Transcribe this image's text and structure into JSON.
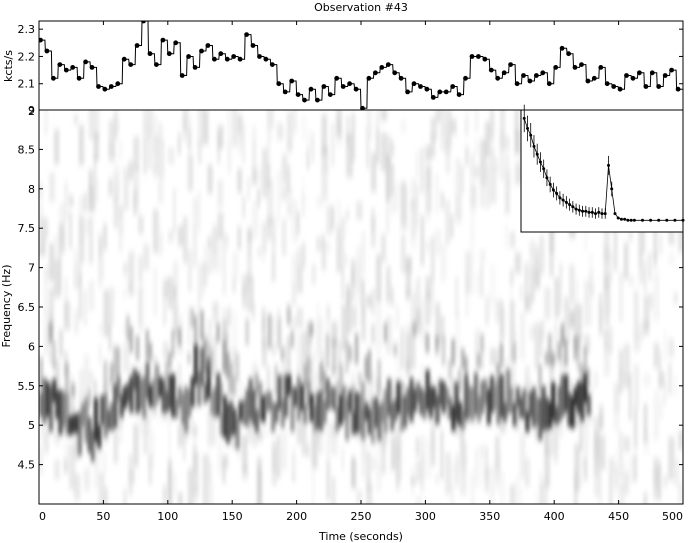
{
  "title": "Observation #43",
  "chart_data": [
    {
      "type": "line",
      "panel": "lightcurve",
      "ylabel": "kcts/s",
      "xlim": [
        0,
        500
      ],
      "ylim": [
        2.0,
        2.33
      ],
      "yticks": [
        2,
        2.1,
        2.2,
        2.3
      ],
      "yticklabels": [
        "2",
        "2.1",
        "2.2",
        "2.3"
      ],
      "x": [
        0,
        5,
        10,
        15,
        20,
        25,
        30,
        35,
        40,
        45,
        50,
        55,
        60,
        65,
        70,
        75,
        80,
        85,
        90,
        95,
        100,
        105,
        110,
        115,
        120,
        125,
        130,
        135,
        140,
        145,
        150,
        155,
        160,
        165,
        170,
        175,
        180,
        185,
        190,
        195,
        200,
        205,
        210,
        215,
        220,
        225,
        230,
        235,
        240,
        245,
        250,
        255,
        260,
        265,
        270,
        275,
        280,
        285,
        290,
        295,
        300,
        305,
        310,
        315,
        320,
        325,
        330,
        335,
        340,
        345,
        350,
        355,
        360,
        365,
        370,
        375,
        380,
        385,
        390,
        395,
        400,
        405,
        410,
        415,
        420,
        425,
        430,
        435,
        440,
        445,
        450,
        455,
        460,
        465,
        470,
        475,
        480,
        485,
        490,
        495
      ],
      "values": [
        2.26,
        2.22,
        2.12,
        2.17,
        2.15,
        2.16,
        2.12,
        2.18,
        2.16,
        2.09,
        2.08,
        2.09,
        2.1,
        2.19,
        2.17,
        2.24,
        2.33,
        2.21,
        2.17,
        2.26,
        2.21,
        2.25,
        2.13,
        2.2,
        2.16,
        2.22,
        2.24,
        2.19,
        2.21,
        2.19,
        2.2,
        2.19,
        2.28,
        2.24,
        2.2,
        2.19,
        2.17,
        2.1,
        2.07,
        2.11,
        2.06,
        2.04,
        2.08,
        2.04,
        2.09,
        2.06,
        2.12,
        2.09,
        2.1,
        2.08,
        2.01,
        2.12,
        2.14,
        2.16,
        2.17,
        2.14,
        2.12,
        2.07,
        2.1,
        2.09,
        2.08,
        2.05,
        2.07,
        2.07,
        2.09,
        2.06,
        2.12,
        2.2,
        2.2,
        2.19,
        2.15,
        2.12,
        2.14,
        2.17,
        2.1,
        2.13,
        2.11,
        2.13,
        2.14,
        2.1,
        2.16,
        2.23,
        2.21,
        2.16,
        2.17,
        2.11,
        2.12,
        2.16,
        2.1,
        2.09,
        2.08,
        2.13,
        2.12,
        2.14,
        2.09,
        2.14,
        2.09,
        2.13,
        2.15,
        2.08
      ]
    },
    {
      "type": "heatmap",
      "panel": "dynamic-power-spectrum",
      "xlabel": "Time (seconds)",
      "ylabel": "Frequency (Hz)",
      "xlim": [
        0,
        500
      ],
      "ylim": [
        4.0,
        9.0
      ],
      "xticks": [
        0,
        50,
        100,
        150,
        200,
        250,
        300,
        350,
        400,
        450,
        500
      ],
      "xticklabels": [
        "0",
        "50",
        "100",
        "150",
        "200",
        "250",
        "300",
        "350",
        "400",
        "450",
        "500"
      ],
      "yticks": [
        4.5,
        5,
        5.5,
        6,
        6.5,
        7,
        7.5,
        8,
        8.5,
        9
      ],
      "yticklabels": [
        "4.5",
        "5",
        "5.5",
        "6",
        "6.5",
        "7",
        "7.5",
        "8",
        "8.5",
        "9"
      ],
      "qpo_track": {
        "t": [
          0,
          10,
          20,
          30,
          40,
          50,
          60,
          70,
          80,
          90,
          100,
          110,
          120,
          130,
          140,
          150,
          160,
          170,
          180,
          190,
          200,
          210,
          220,
          230,
          240,
          250,
          260,
          270,
          280,
          290,
          300,
          310,
          320,
          330,
          340,
          350,
          360,
          370,
          380,
          390,
          400,
          410,
          420
        ],
        "freq": [
          5.25,
          5.3,
          5.15,
          5.0,
          4.9,
          5.1,
          5.35,
          5.5,
          5.4,
          5.55,
          5.4,
          5.3,
          5.6,
          5.55,
          5.1,
          5.0,
          5.15,
          5.25,
          5.2,
          5.35,
          5.4,
          5.2,
          5.3,
          5.25,
          5.15,
          5.0,
          5.1,
          5.2,
          5.25,
          5.35,
          5.45,
          5.3,
          5.2,
          5.25,
          5.3,
          5.25,
          5.3,
          5.25,
          5.1,
          5.1,
          5.25,
          5.3,
          5.35
        ]
      }
    },
    {
      "type": "scatter",
      "panel": "inset-power-spectrum",
      "x": [
        0.02,
        0.04,
        0.06,
        0.08,
        0.1,
        0.12,
        0.14,
        0.16,
        0.18,
        0.2,
        0.22,
        0.24,
        0.26,
        0.28,
        0.3,
        0.32,
        0.34,
        0.36,
        0.38,
        0.4,
        0.42,
        0.44,
        0.46,
        0.48,
        0.5,
        0.52,
        0.54,
        0.56,
        0.58,
        0.6,
        0.62,
        0.64,
        0.66,
        0.68,
        0.7,
        0.75,
        0.8,
        0.85,
        0.9,
        0.95,
        1.0
      ],
      "y": [
        0.97,
        0.88,
        0.82,
        0.72,
        0.65,
        0.58,
        0.52,
        0.44,
        0.38,
        0.33,
        0.3,
        0.26,
        0.24,
        0.22,
        0.2,
        0.18,
        0.16,
        0.15,
        0.14,
        0.14,
        0.13,
        0.13,
        0.12,
        0.13,
        0.12,
        0.12,
        0.55,
        0.34,
        0.12,
        0.08,
        0.07,
        0.07,
        0.06,
        0.06,
        0.06,
        0.06,
        0.06,
        0.06,
        0.06,
        0.06,
        0.06
      ]
    }
  ]
}
